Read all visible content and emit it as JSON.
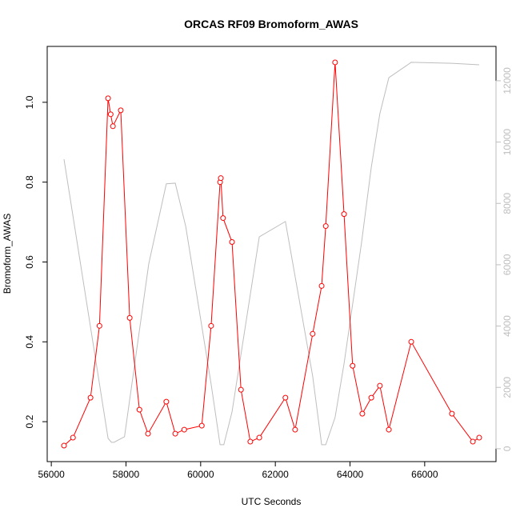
{
  "chart_data": {
    "type": "line",
    "title": "ORCAS RF09 Bromoform_AWAS",
    "x_label": "UTC Seconds",
    "y_label": "Bromoform_AWAS",
    "xlim": [
      55890,
      67910
    ],
    "xticks": [
      56000,
      58000,
      60000,
      62000,
      64000,
      66000
    ],
    "ylim": [
      0.1,
      1.14
    ],
    "yticks": [
      0.2,
      0.4,
      0.6,
      0.8,
      {
        "value": 1,
        "label": "1.0"
      }
    ],
    "y2lim": [
      -420,
      13120
    ],
    "y2ticks": [
      0,
      2000,
      4000,
      6000,
      8000,
      10000,
      12000
    ],
    "y2color": "#bebebe",
    "series": [
      {
        "color": "#ff0000",
        "markers": true,
        "x": [
          56340,
          56580,
          57050,
          57290,
          57520,
          57590,
          57650,
          57860,
          58100,
          58360,
          58590,
          59080,
          59320,
          59560,
          60030,
          60280,
          60520,
          60540,
          60600,
          60840,
          61080,
          61330,
          61570,
          62270,
          62530,
          63000,
          63240,
          63350,
          63600,
          63840,
          64070,
          64330,
          64570,
          64800,
          65040,
          65640,
          66730,
          67290,
          67460
        ],
        "values": [
          0.14,
          0.16,
          0.26,
          0.44,
          1.01,
          0.97,
          0.94,
          0.98,
          0.46,
          0.23,
          0.17,
          0.25,
          0.17,
          0.18,
          0.19,
          0.44,
          0.8,
          0.81,
          0.71,
          0.65,
          0.28,
          0.15,
          0.16,
          0.26,
          0.18,
          0.42,
          0.54,
          0.69,
          1.1,
          0.72,
          0.34,
          0.22,
          0.26,
          0.29,
          0.18,
          0.4,
          0.22,
          0.15,
          0.16
        ]
      },
      {
        "color": "#bebebe",
        "axis": "y2",
        "markers": false,
        "x": [
          56340,
          57520,
          57610,
          57680,
          57960,
          58610,
          59080,
          59320,
          59600,
          60280,
          60520,
          60620,
          60840,
          61570,
          62270,
          63000,
          63240,
          63350,
          63600,
          63840,
          64310,
          64570,
          64800,
          65040,
          65640,
          66730,
          67460
        ],
        "values": [
          9440,
          340,
          210,
          210,
          390,
          6030,
          8640,
          8660,
          7250,
          2110,
          130,
          130,
          1200,
          6910,
          7410,
          2370,
          130,
          130,
          1020,
          2770,
          6730,
          9180,
          10930,
          12100,
          12600,
          12570,
          12520
        ]
      }
    ]
  }
}
